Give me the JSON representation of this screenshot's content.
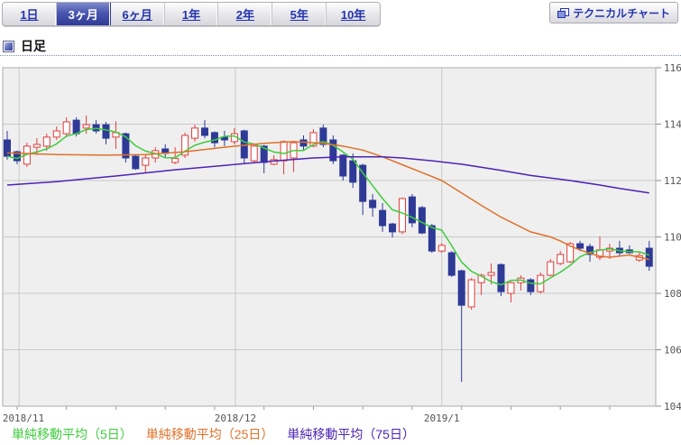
{
  "toolbar": {
    "tabs": [
      {
        "label": "1日",
        "selected": false
      },
      {
        "label": "3ヶ月",
        "selected": true
      },
      {
        "label": "6ヶ月",
        "selected": false
      },
      {
        "label": "1年",
        "selected": false
      },
      {
        "label": "2年",
        "selected": false
      },
      {
        "label": "5年",
        "selected": false
      },
      {
        "label": "10年",
        "selected": false
      }
    ],
    "technical_chart_button_label": "テクニカルチャート"
  },
  "header": {
    "title": "日足"
  },
  "legend": [
    {
      "label": "単純移動平均（5日）",
      "color": "#3ecc3e"
    },
    {
      "label": "単純移動平均（25日）",
      "color": "#e0712a"
    },
    {
      "label": "単純移動平均（75日）",
      "color": "#4b23b5"
    }
  ],
  "chart_data": {
    "type": "candlestick",
    "title": "日足",
    "grid": true,
    "y_axis": {
      "min": 104,
      "max": 116,
      "step": 2,
      "side": "right",
      "tick_labels": [
        "116",
        "114",
        "112",
        "110",
        "108",
        "106",
        "104"
      ]
    },
    "x_gridlines": [
      {
        "label": "2018/11",
        "index": 1.2
      },
      {
        "label": "2018/12",
        "index": 23.1
      },
      {
        "label": "2019/1",
        "index": 44.0
      }
    ],
    "minor_tick": {
      "start": 1,
      "every": 5
    },
    "layout": {
      "x_start": 8,
      "x_step": 10.95,
      "body_width": 7
    },
    "colors": {
      "up_stroke": "#e23d3d",
      "up_fill": "#ffffff",
      "down": "#2e3a96",
      "sma5": "#3ecc3e",
      "sma25": "#e0712a",
      "sma75": "#4b23b5",
      "plot_bg": "#efefef",
      "grid": "#c9c9c9",
      "border": "#ababab",
      "axis_text": "#555555"
    },
    "candles": [
      [
        113.44,
        113.76,
        112.74,
        112.86
      ],
      [
        113.02,
        113.06,
        112.58,
        112.7
      ],
      [
        112.58,
        113.34,
        112.48,
        113.22
      ],
      [
        113.18,
        113.5,
        112.9,
        113.28
      ],
      [
        113.22,
        113.66,
        113.06,
        113.54
      ],
      [
        113.54,
        113.92,
        113.44,
        113.76
      ],
      [
        113.66,
        114.24,
        113.54,
        114.08
      ],
      [
        114.14,
        114.24,
        113.56,
        113.66
      ],
      [
        113.86,
        114.3,
        113.66,
        113.98
      ],
      [
        113.98,
        114.14,
        113.66,
        113.76
      ],
      [
        113.98,
        114.08,
        113.28,
        113.5
      ],
      [
        113.54,
        114.1,
        113.12,
        113.7
      ],
      [
        113.66,
        113.7,
        112.64,
        112.8
      ],
      [
        112.86,
        112.9,
        112.38,
        112.42
      ],
      [
        112.54,
        112.9,
        112.26,
        112.8
      ],
      [
        112.8,
        113.18,
        112.64,
        113.06
      ],
      [
        113.12,
        113.28,
        112.8,
        112.96
      ],
      [
        112.64,
        113.18,
        112.58,
        112.78
      ],
      [
        112.9,
        113.7,
        112.8,
        113.6
      ],
      [
        113.5,
        113.98,
        113.38,
        113.86
      ],
      [
        113.86,
        114.14,
        113.5,
        113.6
      ],
      [
        113.7,
        113.74,
        113.18,
        113.34
      ],
      [
        113.54,
        113.76,
        113.22,
        113.44
      ],
      [
        113.38,
        113.86,
        113.28,
        113.66
      ],
      [
        113.76,
        113.8,
        112.58,
        112.8
      ],
      [
        112.7,
        113.26,
        112.62,
        113.22
      ],
      [
        113.22,
        113.26,
        112.26,
        112.64
      ],
      [
        112.58,
        112.9,
        112.54,
        112.74
      ],
      [
        112.7,
        113.42,
        112.22,
        113.38
      ],
      [
        112.8,
        113.4,
        112.3,
        113.34
      ],
      [
        113.44,
        113.6,
        113.06,
        113.22
      ],
      [
        113.22,
        113.82,
        113.18,
        113.7
      ],
      [
        113.86,
        113.98,
        113.18,
        113.28
      ],
      [
        113.44,
        113.6,
        112.58,
        112.7
      ],
      [
        112.9,
        112.94,
        112.0,
        112.16
      ],
      [
        112.7,
        112.96,
        111.74,
        111.94
      ],
      [
        112.54,
        112.6,
        110.78,
        111.26
      ],
      [
        111.3,
        111.52,
        110.72,
        111.04
      ],
      [
        110.94,
        111.2,
        110.18,
        110.4
      ],
      [
        110.46,
        110.5,
        109.98,
        110.18
      ],
      [
        110.18,
        111.4,
        110.1,
        111.36
      ],
      [
        111.42,
        111.52,
        110.34,
        110.5
      ],
      [
        111.04,
        111.1,
        110.1,
        110.14
      ],
      [
        110.4,
        110.46,
        109.44,
        109.5
      ],
      [
        109.5,
        109.78,
        109.44,
        109.7
      ],
      [
        109.44,
        109.5,
        108.58,
        108.64
      ],
      [
        108.8,
        108.84,
        104.86,
        107.58
      ],
      [
        107.52,
        108.54,
        107.42,
        108.48
      ],
      [
        108.38,
        108.7,
        107.94,
        108.64
      ],
      [
        108.64,
        109.06,
        108.32,
        108.74
      ],
      [
        109.02,
        109.06,
        107.9,
        108.06
      ],
      [
        108.0,
        108.42,
        107.68,
        108.38
      ],
      [
        108.38,
        108.64,
        108.1,
        108.54
      ],
      [
        108.48,
        108.54,
        107.94,
        108.06
      ],
      [
        108.06,
        108.74,
        108.0,
        108.64
      ],
      [
        108.64,
        109.22,
        108.6,
        109.12
      ],
      [
        109.06,
        109.5,
        109.0,
        109.38
      ],
      [
        109.12,
        109.82,
        109.08,
        109.76
      ],
      [
        109.76,
        109.86,
        109.5,
        109.6
      ],
      [
        109.66,
        109.76,
        109.12,
        109.38
      ],
      [
        109.28,
        110.02,
        109.18,
        109.54
      ],
      [
        109.5,
        109.76,
        109.22,
        109.6
      ],
      [
        109.6,
        109.86,
        109.32,
        109.44
      ],
      [
        109.54,
        109.7,
        109.4,
        109.44
      ],
      [
        109.18,
        109.44,
        109.12,
        109.34
      ],
      [
        109.6,
        109.86,
        108.8,
        108.96
      ]
    ],
    "series": [
      {
        "name": "単純移動平均（5日）",
        "period": 5,
        "color": "#3ecc3e",
        "derive": "sma_of_close"
      },
      {
        "name": "単純移動平均（25日）",
        "period": 25,
        "color": "#e0712a",
        "points": [
          [
            0,
            112.98
          ],
          [
            5,
            112.92
          ],
          [
            10,
            112.9
          ],
          [
            14,
            112.92
          ],
          [
            18,
            113.02
          ],
          [
            22,
            113.18
          ],
          [
            26,
            113.32
          ],
          [
            29,
            113.38
          ],
          [
            32,
            113.32
          ],
          [
            34,
            113.22
          ],
          [
            36,
            113.08
          ],
          [
            38,
            112.84
          ],
          [
            40,
            112.56
          ],
          [
            42,
            112.28
          ],
          [
            44,
            112.0
          ],
          [
            46,
            111.56
          ],
          [
            48,
            111.12
          ],
          [
            50,
            110.7
          ],
          [
            53,
            110.18
          ],
          [
            55,
            110.0
          ],
          [
            56,
            109.86
          ],
          [
            57,
            109.68
          ],
          [
            58,
            109.54
          ],
          [
            59,
            109.42
          ],
          [
            60,
            109.32
          ],
          [
            61,
            109.28
          ],
          [
            62,
            109.32
          ],
          [
            63,
            109.36
          ],
          [
            64,
            109.28
          ],
          [
            65,
            109.2
          ]
        ]
      },
      {
        "name": "単純移動平均（75日）",
        "period": 75,
        "color": "#4b23b5",
        "points": [
          [
            0,
            111.84
          ],
          [
            5,
            111.96
          ],
          [
            11,
            112.16
          ],
          [
            17,
            112.38
          ],
          [
            24,
            112.6
          ],
          [
            28,
            112.72
          ],
          [
            31,
            112.8
          ],
          [
            34,
            112.84
          ],
          [
            38,
            112.84
          ],
          [
            40,
            112.8
          ],
          [
            43,
            112.7
          ],
          [
            46,
            112.58
          ],
          [
            50,
            112.36
          ],
          [
            53,
            112.18
          ],
          [
            57,
            112.0
          ],
          [
            60,
            111.84
          ],
          [
            62,
            111.72
          ],
          [
            65,
            111.56
          ]
        ]
      }
    ]
  }
}
